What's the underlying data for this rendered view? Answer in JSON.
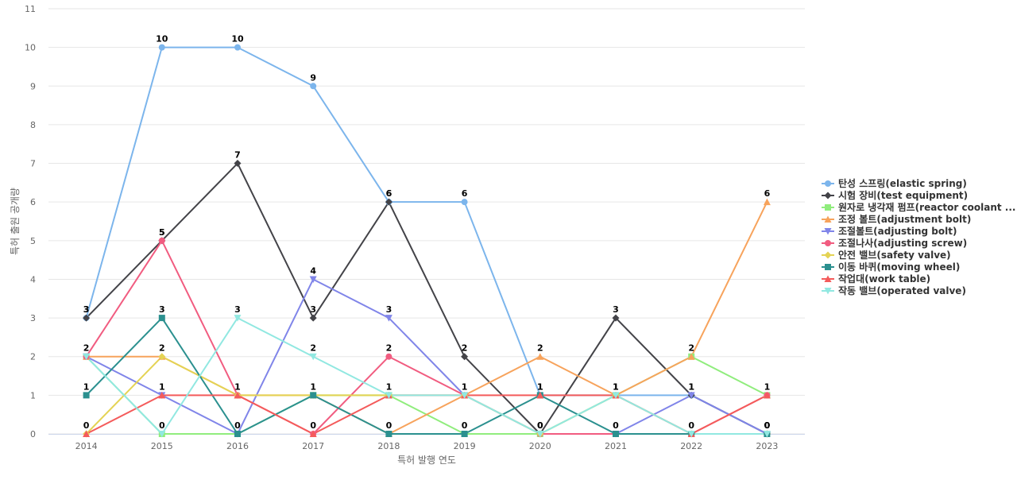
{
  "chart_data": {
    "type": "line",
    "title": "",
    "xlabel": "특허 발행 연도",
    "ylabel": "특허 출원 공개량",
    "x": [
      "2014",
      "2015",
      "2016",
      "2017",
      "2018",
      "2019",
      "2020",
      "2021",
      "2022",
      "2023"
    ],
    "ylim": [
      0,
      11
    ],
    "yticks": [
      0,
      1,
      2,
      3,
      4,
      5,
      6,
      7,
      8,
      9,
      10,
      11
    ],
    "grid": true,
    "legend_position": "right",
    "series": [
      {
        "name": "탄성 스프링(elastic spring)",
        "color": "#7cb5ec",
        "marker": "circle",
        "values": [
          3,
          10,
          10,
          9,
          6,
          6,
          1,
          1,
          1,
          0
        ],
        "labels": [
          3,
          10,
          10,
          9,
          6,
          6,
          1,
          1,
          1,
          0
        ]
      },
      {
        "name": "시험 장비(test equipment)",
        "color": "#434348",
        "marker": "diamond",
        "values": [
          3,
          5,
          7,
          3,
          6,
          2,
          0,
          3,
          1,
          0
        ],
        "labels": [
          3,
          5,
          7,
          3,
          6,
          2,
          0,
          3,
          1,
          0
        ]
      },
      {
        "name": "원자로 냉각재 펌프(reactor coolant ...",
        "color": "#90ed7d",
        "marker": "square",
        "values": [
          2,
          0,
          0,
          1,
          1,
          0,
          0,
          1,
          2,
          1
        ],
        "labels": [
          null,
          null,
          null,
          null,
          null,
          null,
          null,
          null,
          null,
          null
        ]
      },
      {
        "name": "조정 볼트(adjustment bolt)",
        "color": "#f7a35c",
        "marker": "triangle",
        "values": [
          2,
          2,
          1,
          1,
          0,
          1,
          2,
          1,
          2,
          6
        ],
        "labels": [
          null,
          null,
          null,
          null,
          null,
          null,
          2,
          null,
          2,
          6
        ]
      },
      {
        "name": "조절볼트(adjusting bolt)",
        "color": "#8085e9",
        "marker": "triangle-down",
        "values": [
          2,
          1,
          0,
          4,
          3,
          1,
          0,
          0,
          1,
          0
        ],
        "labels": [
          null,
          null,
          null,
          4,
          3,
          null,
          null,
          null,
          null,
          null
        ]
      },
      {
        "name": "조절나사(adjusting screw)",
        "color": "#f15c80",
        "marker": "circle",
        "values": [
          2,
          5,
          1,
          0,
          2,
          1,
          0,
          0,
          0,
          1
        ],
        "labels": [
          2,
          5,
          null,
          null,
          2,
          null,
          null,
          null,
          null,
          null
        ]
      },
      {
        "name": "안전 밸브(safety valve)",
        "color": "#e4d354",
        "marker": "diamond",
        "values": [
          0,
          2,
          1,
          1,
          1,
          1,
          0,
          1,
          0,
          0
        ],
        "labels": [
          null,
          2,
          null,
          null,
          null,
          null,
          null,
          null,
          null,
          null
        ]
      },
      {
        "name": "이동 바퀴(moving wheel)",
        "color": "#2b908f",
        "marker": "square",
        "values": [
          1,
          3,
          0,
          1,
          0,
          0,
          1,
          0,
          0,
          0
        ],
        "labels": [
          1,
          3,
          0,
          1,
          0,
          0,
          null,
          0,
          0,
          null
        ]
      },
      {
        "name": "작업대(work table)",
        "color": "#f45b5b",
        "marker": "triangle",
        "values": [
          0,
          1,
          1,
          0,
          1,
          1,
          1,
          1,
          0,
          1
        ],
        "labels": [
          0,
          1,
          1,
          0,
          1,
          1,
          1,
          1,
          null,
          1
        ]
      },
      {
        "name": "작동 밸브(operated valve)",
        "color": "#91e8e1",
        "marker": "triangle-down",
        "values": [
          2,
          0,
          3,
          2,
          1,
          1,
          0,
          1,
          0,
          0
        ],
        "labels": [
          null,
          0,
          3,
          2,
          null,
          null,
          0,
          null,
          null,
          0
        ]
      }
    ]
  }
}
